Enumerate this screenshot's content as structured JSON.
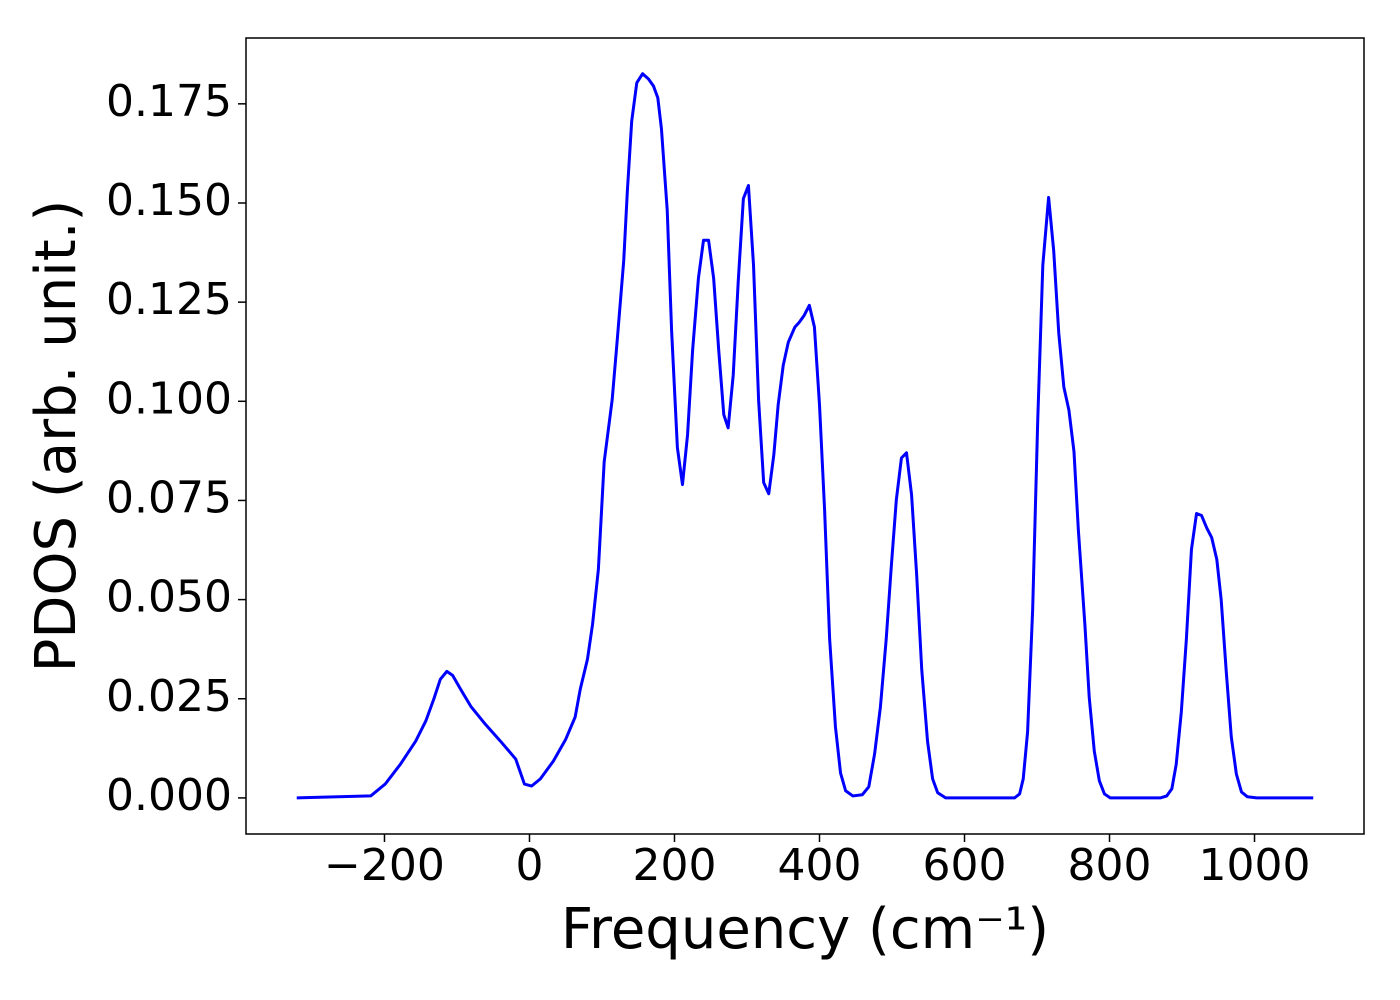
{
  "chart_data": {
    "type": "line",
    "xlabel": "Frequency (cm⁻¹)",
    "ylabel": "PDOS (arb. unit.)",
    "xlim": [
      -391,
      1151
    ],
    "ylim": [
      -0.0091,
      0.1916
    ],
    "xticks": [
      {
        "value": -200,
        "label": "−200"
      },
      0,
      200,
      400,
      600,
      800,
      1000
    ],
    "yticks": [
      {
        "value": 0,
        "label": "0.000"
      },
      {
        "value": 0.025,
        "label": "0.025"
      },
      {
        "value": 0.05,
        "label": "0.050"
      },
      {
        "value": 0.075,
        "label": "0.075"
      },
      {
        "value": 0.1,
        "label": "0.100"
      },
      {
        "value": 0.125,
        "label": "0.125"
      },
      {
        "value": 0.15,
        "label": "0.150"
      },
      {
        "value": 0.175,
        "label": "0.175"
      }
    ],
    "grid": false,
    "series": [
      {
        "color": "#0000ff",
        "x": [
          -321,
          -219,
          -199,
          -178,
          -157,
          -143,
          -132,
          -123,
          -114,
          -106,
          -95,
          -81,
          -61,
          -40,
          -19,
          -7,
          3,
          15,
          33,
          50,
          63,
          70,
          80,
          87,
          95,
          103,
          114,
          121,
          130,
          135,
          141,
          148,
          156,
          164,
          171,
          177,
          182,
          190,
          196,
          204,
          211,
          218,
          225,
          233,
          240,
          247,
          254,
          261,
          268,
          274,
          281,
          288,
          295,
          302,
          309,
          316,
          323,
          330,
          337,
          343,
          350,
          357,
          366,
          372,
          379,
          386,
          393,
          400,
          407,
          414,
          422,
          429,
          436,
          446,
          459,
          468,
          476,
          484,
          492,
          499,
          506,
          513,
          520,
          527,
          534,
          541,
          549,
          556,
          563,
          574,
          669,
          676,
          681,
          687,
          694,
          701,
          708,
          716,
          723,
          730,
          737,
          744,
          751,
          757,
          766,
          772,
          779,
          786,
          793,
          801,
          870,
          879,
          886,
          892,
          899,
          906,
          913,
          920,
          927,
          934,
          941,
          948,
          954,
          961,
          968,
          975,
          982,
          990,
          1003,
          1081
        ],
        "values": [
          0,
          0.0005,
          0.0035,
          0.0085,
          0.0143,
          0.0194,
          0.0249,
          0.0299,
          0.0319,
          0.0309,
          0.0274,
          0.0231,
          0.0186,
          0.0143,
          0.0098,
          0.0035,
          0.003,
          0.0048,
          0.0093,
          0.0148,
          0.0204,
          0.0274,
          0.035,
          0.0438,
          0.0576,
          0.0847,
          0.1003,
          0.1154,
          0.1355,
          0.1531,
          0.1707,
          0.1803,
          0.1826,
          0.1813,
          0.1795,
          0.1765,
          0.1687,
          0.1481,
          0.1179,
          0.0883,
          0.079,
          0.0915,
          0.1129,
          0.131,
          0.1406,
          0.1406,
          0.131,
          0.1129,
          0.0966,
          0.0933,
          0.1066,
          0.1305,
          0.1511,
          0.1544,
          0.1343,
          0.1003,
          0.0795,
          0.0767,
          0.0865,
          0.0991,
          0.1091,
          0.1149,
          0.1187,
          0.1199,
          0.1217,
          0.1242,
          0.1187,
          0.0991,
          0.0727,
          0.04,
          0.0179,
          0.0063,
          0.0018,
          0.0005,
          0.0008,
          0.0028,
          0.0111,
          0.0229,
          0.04,
          0.0583,
          0.0752,
          0.0857,
          0.087,
          0.0764,
          0.0563,
          0.0324,
          0.0143,
          0.0048,
          0.0013,
          0,
          0,
          0.001,
          0.0048,
          0.0166,
          0.0475,
          0.0953,
          0.1343,
          0.1514,
          0.138,
          0.1172,
          0.1036,
          0.0978,
          0.0873,
          0.0676,
          0.0438,
          0.0254,
          0.0118,
          0.0043,
          0.001,
          0,
          0,
          0.0005,
          0.0023,
          0.0085,
          0.0216,
          0.04,
          0.0626,
          0.0717,
          0.0712,
          0.0681,
          0.0656,
          0.0601,
          0.05,
          0.0319,
          0.0153,
          0.006,
          0.0015,
          0.0003,
          0,
          0
        ]
      }
    ]
  }
}
